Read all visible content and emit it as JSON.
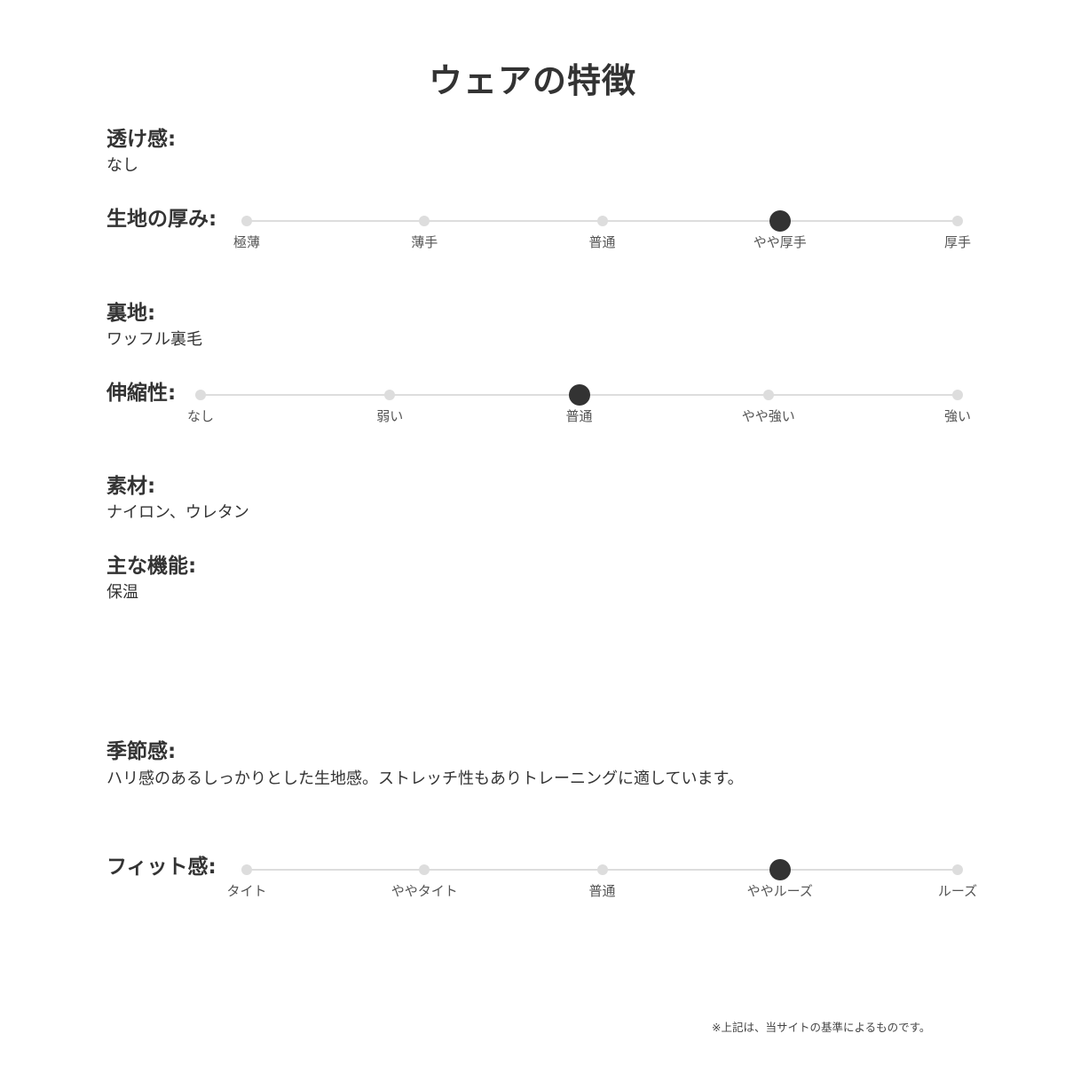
{
  "title": "ウェアの特徴",
  "sections": {
    "transparency": {
      "label": "透け感:",
      "value": "なし"
    },
    "thickness": {
      "label": "生地の厚み:",
      "options": [
        "極薄",
        "薄手",
        "普通",
        "やや厚手",
        "厚手"
      ],
      "selected_index": 3
    },
    "lining": {
      "label": "裏地:",
      "value": "ワッフル裏毛"
    },
    "stretch": {
      "label": "伸縮性:",
      "options": [
        "なし",
        "弱い",
        "普通",
        "やや強い",
        "強い"
      ],
      "selected_index": 2
    },
    "material": {
      "label": "素材:",
      "value": "ナイロン、ウレタン"
    },
    "function": {
      "label": "主な機能:",
      "value": "保温"
    },
    "season": {
      "label": "季節感:",
      "value": "ハリ感のあるしっかりとした生地感。ストレッチ性もありトレーニングに適しています。"
    },
    "fit": {
      "label": "フィット感:",
      "options": [
        "タイト",
        "ややタイト",
        "普通",
        "ややルーズ",
        "ルーズ"
      ],
      "selected_index": 3
    }
  },
  "footnote": "※上記は、当サイトの基準によるものです。",
  "colors": {
    "text": "#333333",
    "track": "#dddddd",
    "selected": "#333333"
  }
}
